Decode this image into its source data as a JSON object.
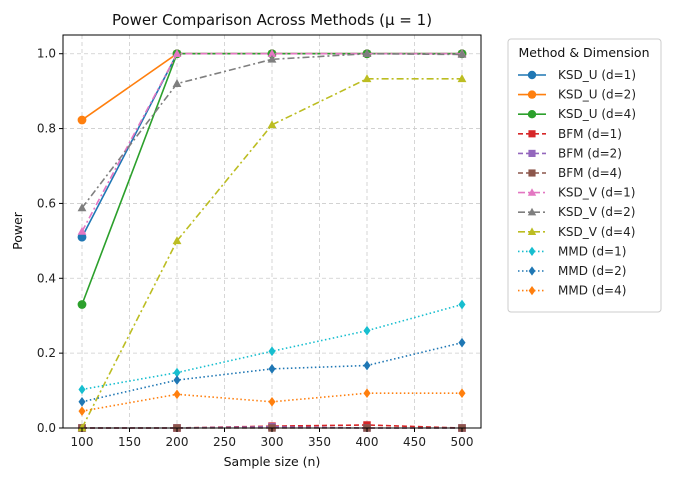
{
  "chart_data": {
    "type": "line",
    "title": "Power Comparison Across Methods (μ = 1)",
    "xlabel": "Sample size (n)",
    "ylabel": "Power",
    "xlim": [
      80,
      520
    ],
    "ylim": [
      0.0,
      1.05
    ],
    "xticks": [
      100,
      150,
      200,
      250,
      300,
      350,
      400,
      450,
      500
    ],
    "xtick_labels": [
      "100",
      "150",
      "200",
      "250",
      "300",
      "350",
      "400",
      "450",
      "500"
    ],
    "yticks": [
      0.0,
      0.2,
      0.4,
      0.6,
      0.8,
      1.0
    ],
    "ytick_labels": [
      "0.0",
      "0.2",
      "0.4",
      "0.6",
      "0.8",
      "1.0"
    ],
    "grid": true,
    "legend": {
      "title": "Method & Dimension",
      "placement": "outside-right"
    },
    "x": [
      100,
      200,
      300,
      400,
      500
    ],
    "series": [
      {
        "name": "KSD_U (d=1)",
        "color": "#1f77b4",
        "marker": "circle",
        "linestyle": "solid",
        "values": [
          0.51,
          1.0,
          1.0,
          1.0,
          1.0
        ]
      },
      {
        "name": "KSD_U (d=2)",
        "color": "#ff7f0e",
        "marker": "circle",
        "linestyle": "solid",
        "values": [
          0.823,
          1.0,
          1.0,
          1.0,
          1.0
        ]
      },
      {
        "name": "KSD_U (d=4)",
        "color": "#2ca02c",
        "marker": "circle",
        "linestyle": "solid",
        "values": [
          0.33,
          1.0,
          1.0,
          1.0,
          1.0
        ]
      },
      {
        "name": "BFM (d=1)",
        "color": "#d62728",
        "marker": "square",
        "linestyle": "dashed",
        "values": [
          0.0,
          0.0,
          0.005,
          0.008,
          0.0
        ]
      },
      {
        "name": "BFM (d=2)",
        "color": "#9467bd",
        "marker": "square",
        "linestyle": "dashed",
        "values": [
          0.0,
          0.0,
          0.003,
          0.0,
          0.0
        ]
      },
      {
        "name": "BFM (d=4)",
        "color": "#8c564b",
        "marker": "square",
        "linestyle": "dashed",
        "values": [
          0.0,
          0.0,
          0.0,
          0.0,
          0.0
        ]
      },
      {
        "name": "KSD_V (d=1)",
        "color": "#e377c2",
        "marker": "triangle",
        "linestyle": "dashdot",
        "values": [
          0.525,
          1.0,
          1.0,
          1.0,
          1.0
        ]
      },
      {
        "name": "KSD_V (d=2)",
        "color": "#7f7f7f",
        "marker": "triangle",
        "linestyle": "dashdot",
        "values": [
          0.588,
          0.92,
          0.985,
          1.0,
          0.998
        ]
      },
      {
        "name": "KSD_V (d=4)",
        "color": "#bcbd22",
        "marker": "triangle",
        "linestyle": "dashdot",
        "values": [
          0.0,
          0.5,
          0.81,
          0.933,
          0.933
        ]
      },
      {
        "name": "MMD (d=1)",
        "color": "#17becf",
        "marker": "diamond",
        "linestyle": "dotted",
        "values": [
          0.103,
          0.148,
          0.205,
          0.26,
          0.33
        ]
      },
      {
        "name": "MMD (d=2)",
        "color": "#1f77b4",
        "marker": "diamond",
        "linestyle": "dotted",
        "values": [
          0.07,
          0.128,
          0.158,
          0.167,
          0.228
        ]
      },
      {
        "name": "MMD (d=4)",
        "color": "#ff7f0e",
        "marker": "diamond",
        "linestyle": "dotted",
        "values": [
          0.045,
          0.09,
          0.07,
          0.093,
          0.093
        ]
      }
    ]
  }
}
